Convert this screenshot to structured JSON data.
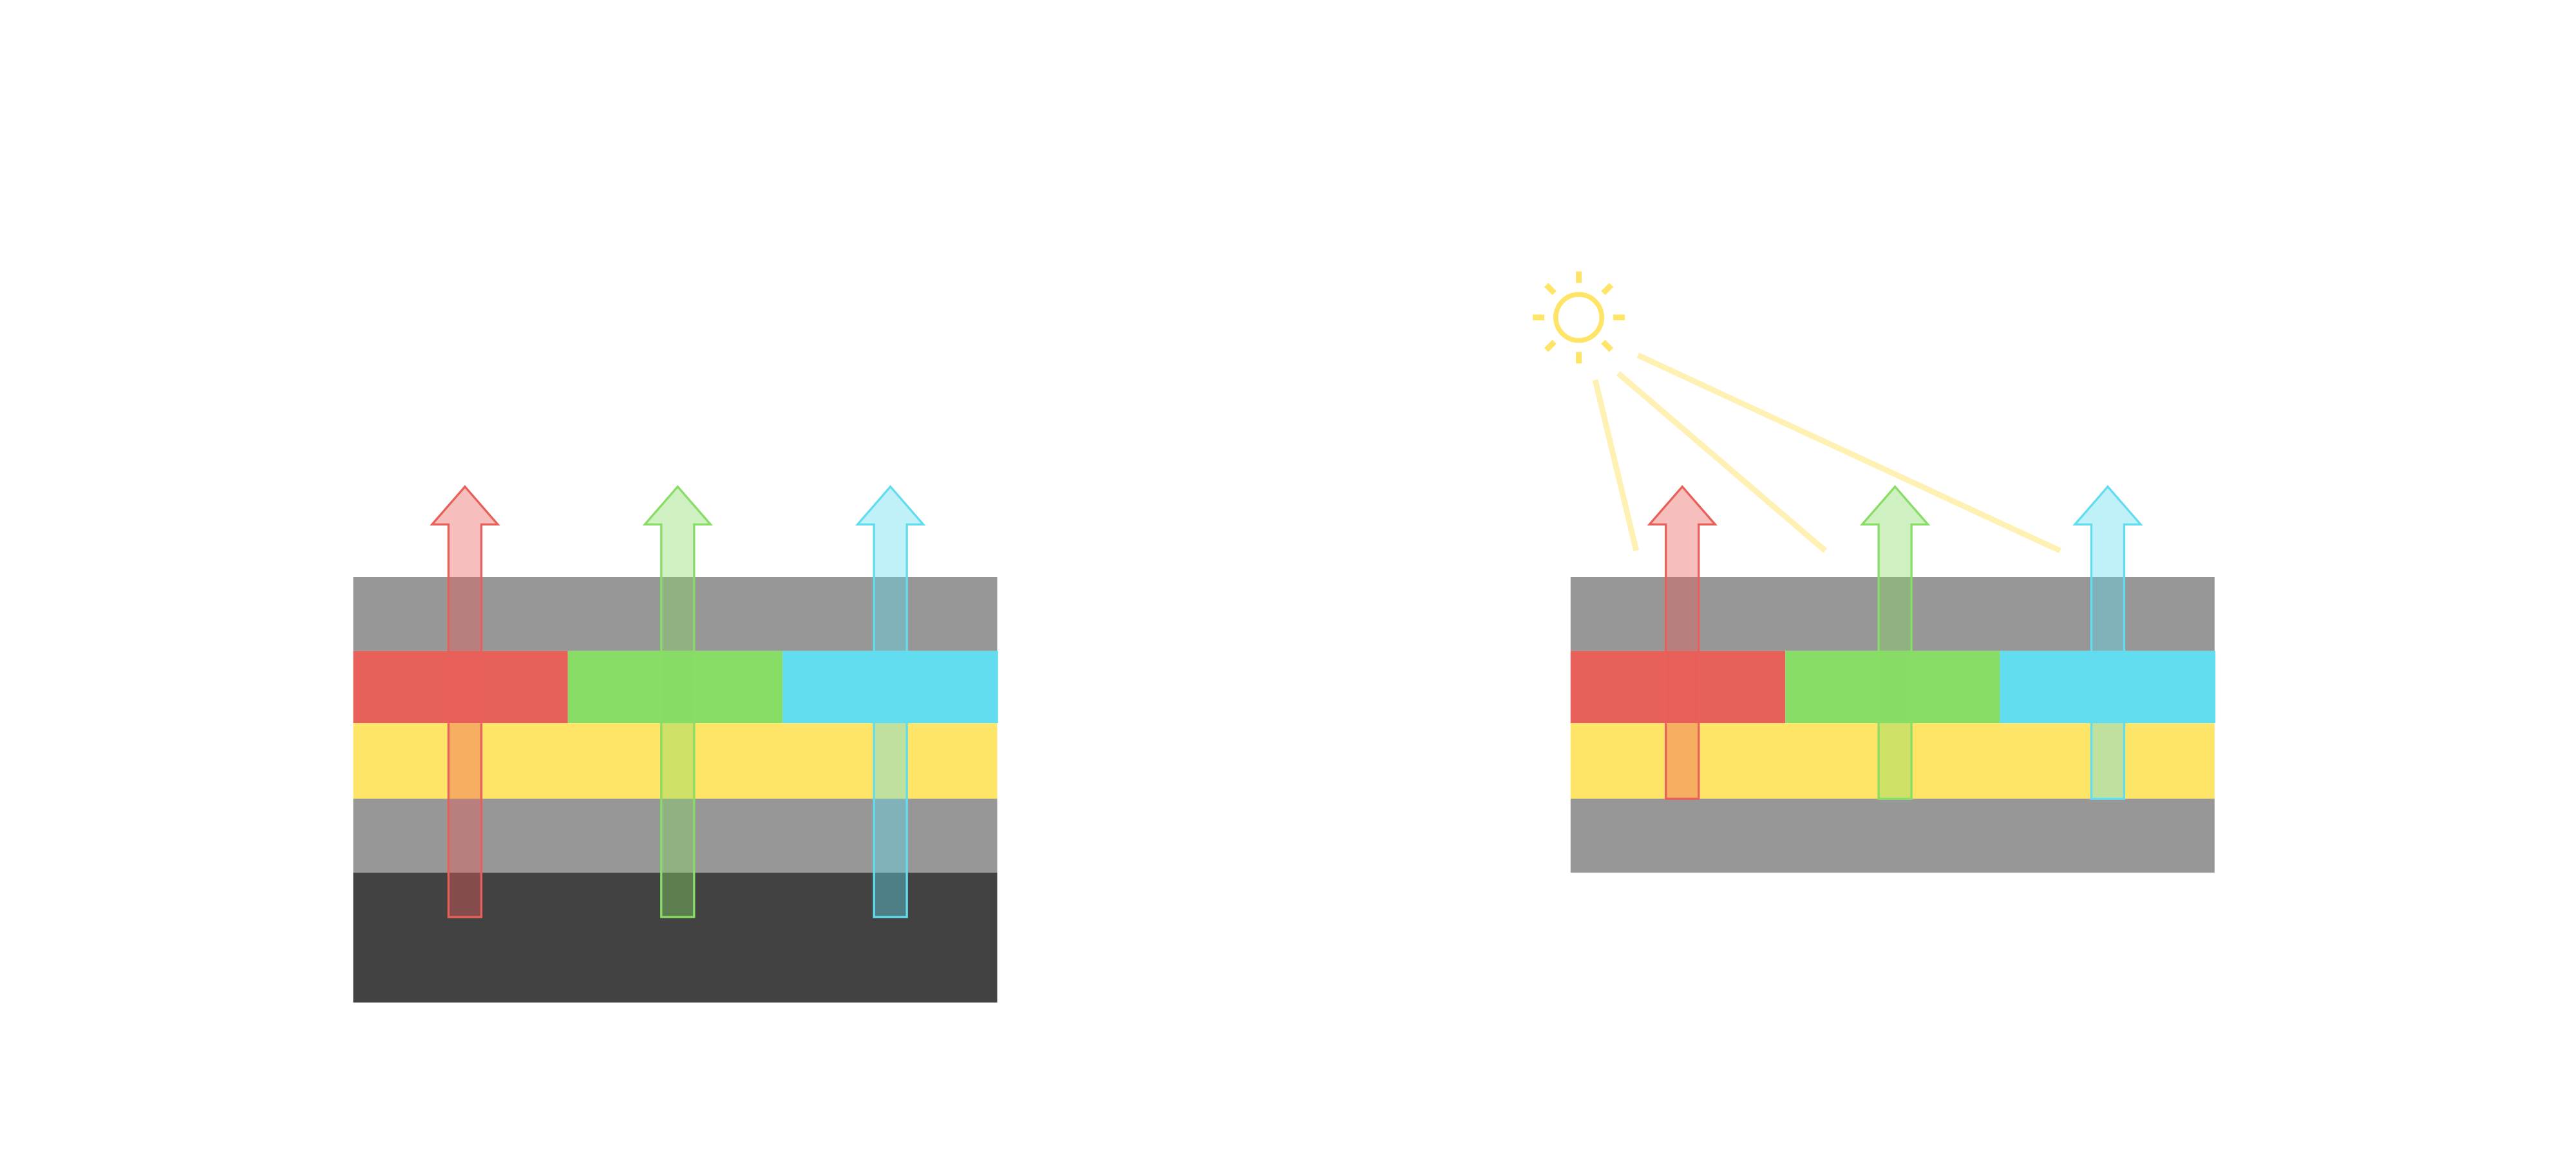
{
  "colors": {
    "gray_layer": "#979797",
    "dark_layer": "#424242",
    "red": "#e8605a",
    "green": "#88dd66",
    "cyan": "#62dcef",
    "yellow": "#ffe567",
    "sun": "#ffe567",
    "ray": "#fff1b3",
    "background": "#ffffff"
  },
  "left_stack": {
    "layers": [
      "gray",
      "red-green-cyan",
      "yellow",
      "gray",
      "dark"
    ],
    "arrows": [
      "red",
      "green",
      "cyan"
    ]
  },
  "right_stack": {
    "layers": [
      "gray",
      "red-green-cyan",
      "yellow",
      "gray"
    ],
    "arrows": [
      "red",
      "green",
      "cyan"
    ],
    "light_source": "sun-icon",
    "incoming_rays": 3
  }
}
